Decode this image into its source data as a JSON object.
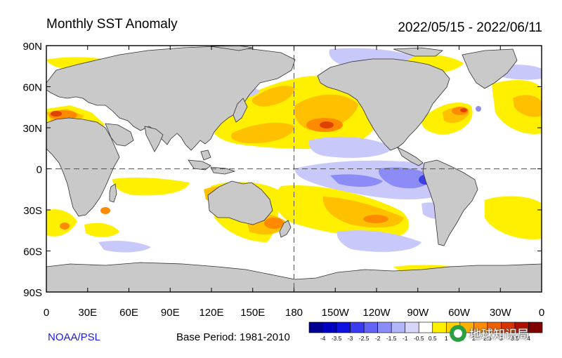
{
  "header": {
    "title": "Monthly SST Anomaly",
    "date_range": "2022/05/15 - 2022/06/11"
  },
  "footer": {
    "organization": "NOAA/PSL",
    "base_period": "Base Period: 1981-2010",
    "watermark_text": "地球知识局"
  },
  "map": {
    "lat_ticks": [
      "90N",
      "60N",
      "30N",
      "0",
      "30S",
      "60S",
      "90S"
    ],
    "lon_ticks": [
      "0",
      "30E",
      "60E",
      "90E",
      "120E",
      "150E",
      "180",
      "150W",
      "120W",
      "90W",
      "60W",
      "30W",
      "0"
    ],
    "colors": {
      "land": "#c9c9c9",
      "ocean": "#ffffff",
      "coast": "#303030"
    }
  },
  "colorbar": {
    "labels": [
      "-4",
      "-3.5",
      "-3",
      "-2.5",
      "-2",
      "-1.5",
      "-1",
      "-0.5",
      "0.5",
      "1",
      "1.5",
      "2",
      "2.5",
      "3",
      "3.5",
      "4"
    ],
    "colors": [
      "#000090",
      "#0000c0",
      "#1010e0",
      "#3a3af0",
      "#6464f4",
      "#8c8cf6",
      "#b4b4f8",
      "#d6d6fa",
      "#ffffff",
      "#fff000",
      "#ffd200",
      "#ffb000",
      "#ff8a00",
      "#f06000",
      "#d83400",
      "#b01000",
      "#800000"
    ]
  }
}
